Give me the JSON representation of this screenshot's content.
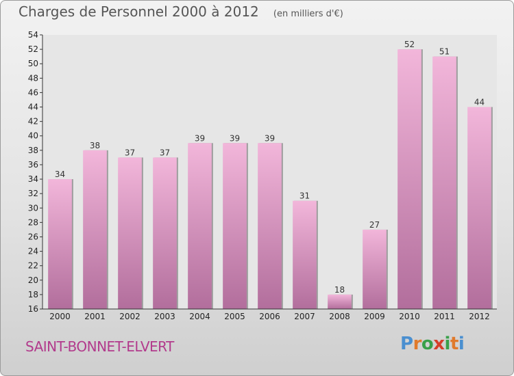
{
  "header": {
    "title": "Charges de Personnel 2000 à 2012",
    "subtitle": "(en milliers d'€)"
  },
  "footer": {
    "commune": "SAINT-BONNET-ELVERT",
    "logo": "Proxiti"
  },
  "colors": {
    "bar_light": "#f2b6da",
    "bar_dark": "#b26e9c",
    "commune_text": "#b23a8c",
    "logo_letters": [
      "#4a8fd0",
      "#e07a2c",
      "#3aa04a",
      "#d63f2a",
      "#3aa04a",
      "#e07a2c",
      "#4a8fd0"
    ]
  },
  "chart_data": {
    "type": "bar",
    "categories": [
      "2000",
      "2001",
      "2002",
      "2003",
      "2004",
      "2005",
      "2006",
      "2007",
      "2008",
      "2009",
      "2010",
      "2011",
      "2012"
    ],
    "values": [
      34,
      38,
      37,
      37,
      39,
      39,
      39,
      31,
      18,
      27,
      52,
      51,
      44
    ],
    "title": "Charges de Personnel 2000 à 2012",
    "subtitle": "(en milliers d'€)",
    "ylim": [
      16,
      54
    ],
    "yticks": [
      16,
      18,
      20,
      22,
      24,
      26,
      28,
      30,
      32,
      34,
      36,
      38,
      40,
      42,
      44,
      46,
      48,
      50,
      52,
      54
    ],
    "grid": false,
    "legend": "none"
  }
}
